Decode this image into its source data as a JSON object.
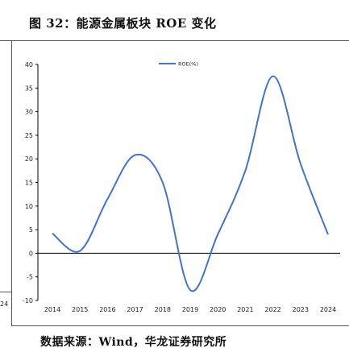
{
  "header": {
    "title": "图 32：能源金属板块 ROE 变化"
  },
  "footer": {
    "source": "数据来源：Wind，华龙证券研究所"
  },
  "left_panel": {
    "fragment_label": "24"
  },
  "chart_data": {
    "type": "line",
    "title": "",
    "xlabel": "",
    "ylabel": "",
    "categories": [
      "2014",
      "2015",
      "2016",
      "2017",
      "2018",
      "2019",
      "2020",
      "2021",
      "2022",
      "2023",
      "2024"
    ],
    "series": [
      {
        "name": "ROE(%)",
        "color": "#4472c4",
        "values": [
          4.2,
          0.5,
          11.5,
          20.8,
          15.0,
          -7.8,
          4.0,
          17.5,
          37.5,
          19.0,
          4.0
        ]
      }
    ],
    "ylim": [
      -10,
      40
    ],
    "yticks": [
      -10,
      -5,
      0,
      5,
      10,
      15,
      20,
      25,
      30,
      35,
      40
    ],
    "legend_position": "top-center",
    "grid": false
  }
}
